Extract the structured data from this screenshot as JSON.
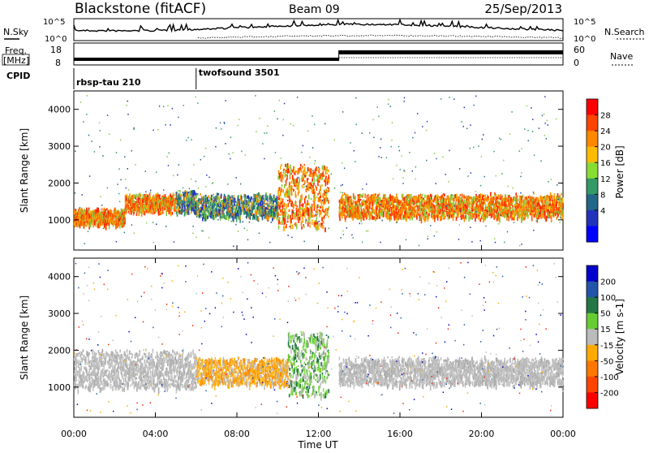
{
  "header": {
    "title": "Blackstone (fitACF)",
    "beam": "Beam 09",
    "date": "25/Sep/2013"
  },
  "noise_panel": {
    "left_label": "N.Sky",
    "right_label": "N.Search",
    "left_ticks": [
      "10^5",
      "10^0"
    ],
    "right_ticks": [
      "10^5",
      "10^0"
    ]
  },
  "freq_panel": {
    "left_label_line1": "Freq.",
    "left_label_line2": "[MHz]",
    "left_ticks": [
      "18",
      "8"
    ],
    "right_label": "Nave",
    "right_ticks": [
      "60",
      "0"
    ]
  },
  "cpid": {
    "label": "CPID",
    "modes": [
      {
        "name": "rbsp-tau 210",
        "start_hour": 0,
        "end_hour": 6
      },
      {
        "name": "twofsound 3501",
        "start_hour": 6,
        "end_hour": 24
      }
    ]
  },
  "chart_data": [
    {
      "type": "heatmap",
      "title": "",
      "quantity": "Power",
      "ylabel": "Slant Range [km]",
      "xlabel": "Time UT",
      "xlim": [
        0,
        24
      ],
      "ylim": [
        180,
        4500
      ],
      "y_ticks": [
        1000,
        2000,
        3000,
        4000
      ],
      "colorbar": {
        "label": "Power [dB]",
        "ticks": [
          "28",
          "24",
          "20",
          "16",
          "12",
          "8",
          "4"
        ],
        "colors": [
          "#ff0000",
          "#ff4400",
          "#ff8800",
          "#ffbb00",
          "#88dd33",
          "#339966",
          "#226688",
          "#2233bb",
          "#0000ff"
        ]
      },
      "echo_bands": [
        {
          "start_hour": 0.0,
          "end_hour": 2.5,
          "range_start": 900,
          "range_end": 1300,
          "level": "high"
        },
        {
          "start_hour": 2.5,
          "end_hour": 5.0,
          "range_start": 1250,
          "range_end": 1700,
          "level": "high"
        },
        {
          "start_hour": 5.0,
          "end_hour": 6.0,
          "range_start": 1200,
          "range_end": 1800,
          "level": "mid"
        },
        {
          "start_hour": 6.0,
          "end_hour": 10.0,
          "range_start": 1100,
          "range_end": 1700,
          "level": "mid"
        },
        {
          "start_hour": 10.0,
          "end_hour": 12.5,
          "range_start": 800,
          "range_end": 2500,
          "level": "high"
        },
        {
          "start_hour": 13.0,
          "end_hour": 24.0,
          "range_start": 1100,
          "range_end": 1700,
          "level": "high"
        }
      ]
    },
    {
      "type": "heatmap",
      "title": "",
      "quantity": "Velocity",
      "ylabel": "Slant Range [km]",
      "xlabel": "Time UT",
      "xlim": [
        0,
        24
      ],
      "ylim": [
        180,
        4500
      ],
      "y_ticks": [
        1000,
        2000,
        3000,
        4000
      ],
      "colorbar": {
        "label": "Velocity [m s-1]",
        "ticks": [
          "200",
          "100",
          "50",
          "15",
          "-15",
          "-50",
          "-100",
          "-200"
        ],
        "colors": [
          "#0000cc",
          "#2255aa",
          "#227744",
          "#66cc33",
          "#bbbbbb",
          "#ffaa00",
          "#ff7700",
          "#ff4400",
          "#ff0000"
        ]
      },
      "echo_bands": [
        {
          "start_hour": 0.0,
          "end_hour": 6.0,
          "range_start": 1000,
          "range_end": 2000,
          "level": "ground"
        },
        {
          "start_hour": 6.0,
          "end_hour": 10.5,
          "range_start": 1100,
          "range_end": 1800,
          "level": "negative"
        },
        {
          "start_hour": 10.5,
          "end_hour": 12.5,
          "range_start": 800,
          "range_end": 2500,
          "level": "positive"
        },
        {
          "start_hour": 13.0,
          "end_hour": 24.0,
          "range_start": 1100,
          "range_end": 1800,
          "level": "ground"
        }
      ]
    }
  ],
  "time_axis": {
    "label": "Time UT",
    "ticks": [
      "00:00",
      "04:00",
      "08:00",
      "12:00",
      "16:00",
      "20:00",
      "00:00"
    ]
  }
}
